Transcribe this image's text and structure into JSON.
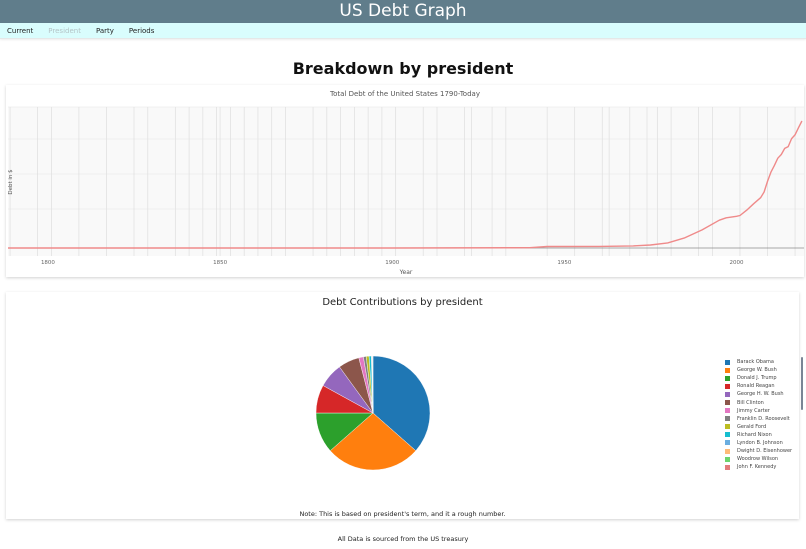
{
  "header": {
    "title": "US Debt Graph"
  },
  "nav": {
    "items": [
      {
        "label": "Current",
        "active": false
      },
      {
        "label": "President",
        "active": true
      },
      {
        "label": "Party",
        "active": false
      },
      {
        "label": "Periods",
        "active": false
      }
    ]
  },
  "page": {
    "title": "Breakdown by president",
    "note": "Note: This is based on president's term, and it a rough number.",
    "footer": "All Data is sourced from the US treasury"
  },
  "colors": {
    "header_bg": "#607d8b",
    "nav_bg": "#d9fdfd",
    "line": "#ef8a8a"
  },
  "chart_data": [
    {
      "type": "line",
      "title": "Total Debt of the United States 1790-Today",
      "xlabel": "Year",
      "ylabel": "Debt in $",
      "x_ticks": [
        1800,
        1850,
        1900,
        1950,
        2000
      ],
      "xlim": [
        1788,
        2020
      ],
      "grid": true,
      "term_gridlines": [
        1789,
        1797,
        1801,
        1809,
        1817,
        1825,
        1829,
        1837,
        1841,
        1845,
        1849,
        1850,
        1853,
        1857,
        1861,
        1865,
        1869,
        1877,
        1881,
        1885,
        1889,
        1893,
        1897,
        1901,
        1909,
        1913,
        1921,
        1923,
        1929,
        1933,
        1945,
        1953,
        1961,
        1963,
        1969,
        1974,
        1977,
        1981,
        1989,
        1993,
        2001,
        2009,
        2017
      ],
      "series": [
        {
          "name": "Total Debt",
          "x": [
            1790,
            1900,
            1940,
            1945,
            1960,
            1970,
            1975,
            1980,
            1985,
            1990,
            1995,
            1997,
            2000,
            2001,
            2003,
            2005,
            2007,
            2008,
            2009,
            2010,
            2011,
            2012,
            2013,
            2014,
            2015,
            2016,
            2017,
            2018,
            2019
          ],
          "values": [
            0.0,
            0.0,
            0.05,
            0.26,
            0.29,
            0.37,
            0.53,
            0.91,
            1.82,
            3.23,
            4.97,
            5.41,
            5.67,
            5.81,
            6.78,
            7.93,
            9.01,
            10.02,
            11.91,
            13.56,
            14.79,
            16.07,
            16.74,
            17.82,
            18.15,
            19.57,
            20.24,
            21.52,
            22.72
          ]
        }
      ],
      "y_unit": "trillions $ (estimated, axis unlabeled)"
    },
    {
      "type": "pie",
      "title": "Debt Contributions by president",
      "legend_position": "right",
      "categories": [
        "Barack Obama",
        "George W. Bush",
        "Donald J. Trump",
        "Ronald Reagan",
        "George H. W. Bush",
        "Bill Clinton",
        "Jimmy Carter",
        "Franklin D. Roosevelt",
        "Gerald Ford",
        "Richard Nixon",
        "Lyndon B. Johnson",
        "Dwight D. Eisenhower",
        "Woodrow Wilson",
        "John F. Kennedy"
      ],
      "values": [
        36.5,
        27.0,
        11.5,
        8.0,
        7.0,
        6.0,
        1.3,
        0.8,
        0.8,
        0.6,
        0.2,
        0.1,
        0.1,
        0.1
      ],
      "colors": [
        "#1f77b4",
        "#ff7f0e",
        "#2ca02c",
        "#d62728",
        "#9467bd",
        "#8c564b",
        "#e377c2",
        "#7f7f7f",
        "#bcbd22",
        "#17becf",
        "#6aaee0",
        "#ffbb78",
        "#6dd46d",
        "#e37b7b"
      ]
    }
  ]
}
